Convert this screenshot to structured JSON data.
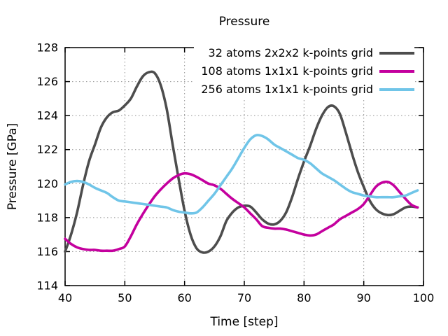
{
  "title": "Pressure",
  "axes": {
    "x_label": "Time [step]",
    "y_label": "Pressure [GPa]"
  },
  "colors": {
    "axis": "#000000",
    "grid": "#909090",
    "background": "#ffffff"
  },
  "chart_data": {
    "type": "line",
    "title": "Pressure",
    "xlabel": "Time [step]",
    "ylabel": "Pressure [GPa]",
    "xlim": [
      40,
      100
    ],
    "ylim": [
      114,
      128
    ],
    "xticks": [
      40,
      50,
      60,
      70,
      80,
      90,
      100
    ],
    "yticks": [
      114,
      116,
      118,
      120,
      122,
      124,
      126,
      128
    ],
    "grid": true,
    "grid_style": "dotted",
    "legend_position": "top-right-inside",
    "x_start": 40,
    "x_step": 1,
    "series": [
      {
        "name": "32 atoms 2x2x2 k-points grid",
        "color": "#4d4d4d",
        "values": [
          116.0,
          117.0,
          118.3,
          119.9,
          121.3,
          122.3,
          123.3,
          123.9,
          124.2,
          124.3,
          124.6,
          125.0,
          125.7,
          126.3,
          126.55,
          126.5,
          125.8,
          124.4,
          122.3,
          120.3,
          118.4,
          117.0,
          116.2,
          115.95,
          116.0,
          116.3,
          116.9,
          117.8,
          118.3,
          118.6,
          118.7,
          118.65,
          118.3,
          117.9,
          117.65,
          117.6,
          117.8,
          118.3,
          119.2,
          120.3,
          121.3,
          122.2,
          123.2,
          124.0,
          124.5,
          124.55,
          124.1,
          123.0,
          121.8,
          120.7,
          119.8,
          119.0,
          118.5,
          118.25,
          118.15,
          118.2,
          118.4,
          118.6,
          118.65,
          118.6
        ]
      },
      {
        "name": "108 atoms 1x1x1 k-points grid",
        "color": "#c4009e",
        "values": [
          116.75,
          116.45,
          116.25,
          116.15,
          116.1,
          116.1,
          116.05,
          116.05,
          116.05,
          116.15,
          116.3,
          116.9,
          117.6,
          118.2,
          118.75,
          119.25,
          119.65,
          120.0,
          120.3,
          120.5,
          120.6,
          120.55,
          120.4,
          120.2,
          120.0,
          119.9,
          119.7,
          119.4,
          119.1,
          118.85,
          118.6,
          118.25,
          117.9,
          117.5,
          117.4,
          117.35,
          117.35,
          117.3,
          117.2,
          117.1,
          117.0,
          116.95,
          117.0,
          117.2,
          117.4,
          117.6,
          117.9,
          118.1,
          118.3,
          118.5,
          118.8,
          119.3,
          119.8,
          120.05,
          120.1,
          119.9,
          119.5,
          119.1,
          118.75,
          118.6
        ]
      },
      {
        "name": "256 atoms 1x1x1 k-points grid",
        "color": "#70c5e8",
        "values": [
          119.95,
          120.1,
          120.15,
          120.1,
          119.95,
          119.75,
          119.6,
          119.45,
          119.2,
          119.0,
          118.95,
          118.9,
          118.85,
          118.8,
          118.75,
          118.7,
          118.65,
          118.6,
          118.45,
          118.35,
          118.3,
          118.25,
          118.3,
          118.6,
          119.0,
          119.4,
          119.9,
          120.4,
          120.9,
          121.5,
          122.1,
          122.6,
          122.85,
          122.8,
          122.6,
          122.3,
          122.1,
          121.9,
          121.7,
          121.5,
          121.4,
          121.2,
          120.9,
          120.6,
          120.4,
          120.2,
          119.95,
          119.7,
          119.5,
          119.4,
          119.3,
          119.25,
          119.2,
          119.2,
          119.2,
          119.2,
          119.25,
          119.3,
          119.45,
          119.6
        ]
      }
    ]
  }
}
